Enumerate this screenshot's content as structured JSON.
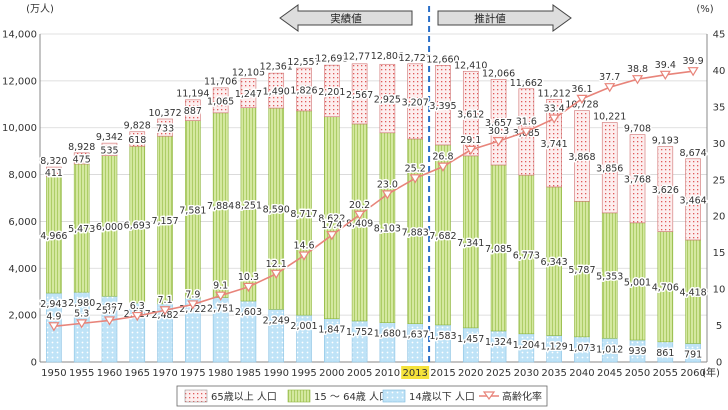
{
  "chart_data": {
    "type": "bar",
    "subtype": "stacked-bar-with-line",
    "y_left_unit": "(万人)",
    "y_right_unit": "(%)",
    "x_suffix": "(年)",
    "ylim_left": [
      0,
      14000
    ],
    "yticks_left": [
      0,
      2000,
      4000,
      6000,
      8000,
      10000,
      12000,
      14000
    ],
    "ylim_right": [
      0,
      45
    ],
    "yticks_right": [
      0,
      5,
      10,
      15,
      20,
      25,
      30,
      35,
      40,
      45
    ],
    "categories": [
      "1950",
      "1955",
      "1960",
      "1965",
      "1970",
      "1975",
      "1980",
      "1985",
      "1990",
      "1995",
      "2000",
      "2005",
      "2010",
      "2013",
      "2015",
      "2020",
      "2025",
      "2030",
      "2035",
      "2040",
      "2045",
      "2050",
      "2055",
      "2060"
    ],
    "highlight_category": "2013",
    "series": [
      {
        "name": "14歳以下 人口",
        "values": [
          2943,
          2980,
          2807,
          2517,
          2482,
          2722,
          2751,
          2603,
          2249,
          2001,
          1847,
          1752,
          1680,
          1637,
          1583,
          1457,
          1324,
          1204,
          1129,
          1073,
          1012,
          939,
          861,
          791
        ]
      },
      {
        "name": "15～64歳 人口",
        "values": [
          4966,
          5473,
          6000,
          6693,
          7157,
          7581,
          7884,
          8251,
          8590,
          8717,
          8622,
          8409,
          8103,
          7883,
          7682,
          7341,
          7085,
          6773,
          6343,
          5787,
          5353,
          5001,
          4706,
          4418
        ]
      },
      {
        "name": "65歳以上 人口",
        "values": [
          411,
          475,
          535,
          618,
          733,
          887,
          1065,
          1247,
          1490,
          1826,
          2201,
          2567,
          2925,
          3207,
          3395,
          3612,
          3657,
          3685,
          3741,
          3868,
          3856,
          3768,
          3626,
          3464
        ]
      }
    ],
    "totals": [
      8320,
      8928,
      9342,
      9828,
      10372,
      11194,
      11706,
      12105,
      12361,
      12557,
      12693,
      12777,
      12806,
      12727,
      12660,
      12410,
      12066,
      11662,
      11212,
      10728,
      10221,
      9708,
      9193,
      8674
    ],
    "line": {
      "name": "高齢化率",
      "values": [
        4.9,
        5.3,
        5.7,
        6.3,
        7.1,
        7.9,
        9.1,
        10.3,
        12.1,
        14.6,
        17.4,
        20.2,
        23.0,
        25.2,
        26.8,
        29.1,
        30.3,
        31.6,
        33.4,
        36.1,
        37.7,
        38.8,
        39.4,
        39.9
      ]
    },
    "segment_labels": {
      "under15": [
        "2,943",
        "2,980",
        "2,807",
        "2,517",
        "2,482",
        "2,722",
        "2,751",
        "2,603",
        "2,249",
        "2,001",
        "1,847",
        "1,752",
        "1,680",
        "1,637",
        "1,583",
        "1,457",
        "1,324",
        "1,204",
        "1,129",
        "1,073",
        "1,012",
        "939",
        "861",
        "791"
      ],
      "working": [
        "4,966",
        "5,473",
        "6,000",
        "6,693",
        "7,157",
        "7,581",
        "7,884",
        "8,251",
        "8,590",
        "8,717",
        "8,622",
        "8,409",
        "8,103",
        "7,883",
        "7,682",
        "7,341",
        "7,085",
        "6,773",
        "6,343",
        "5,787",
        "5,353",
        "5,001",
        "4,706",
        "4,418"
      ],
      "over65": [
        "411",
        "475",
        "535",
        "618",
        "733",
        "887",
        "1,065",
        "1,247",
        "1,490",
        "1,826",
        "2,201",
        "2,567",
        "2,925",
        "3,207",
        "3,395",
        "3,612",
        "3,657",
        "3,685",
        "3,741",
        "3,868",
        "3,856",
        "3,768",
        "3,626",
        "3,464"
      ],
      "totals": [
        "8,320",
        "8,928",
        "9,342",
        "9,828",
        "10,372",
        "11,194",
        "11,706",
        "12,105",
        "12,361",
        "12,557",
        "12,693",
        "12,777",
        "12,806",
        "12,727",
        "12,660",
        "12,410",
        "12,066",
        "11,662",
        "11,212",
        "10,728",
        "10,221",
        "9,708",
        "9,193",
        "8,674"
      ],
      "line": [
        "4.9",
        "5.3",
        "5.7",
        "6.3",
        "7.1",
        "7.9",
        "9.1",
        "10.3",
        "12.1",
        "14.6",
        "17.4",
        "20.2",
        "23.0",
        "25.2",
        "26.8",
        "29.1",
        "30.3",
        "31.6",
        "33.4",
        "36.1",
        "37.7",
        "38.8",
        "39.4",
        "39.9"
      ]
    },
    "period_arrows": {
      "actual": "実績値",
      "projected": "推計値"
    },
    "legend_placement": "bottom",
    "grid": true
  },
  "legend": {
    "over65": "65歳以上 人口",
    "working": "15 ～ 64歳 人口",
    "under15": "14歳以下 人口",
    "line": "高齢化率"
  },
  "colors": {
    "under15": "#bfe3f7",
    "under15_dot": "#ffffff",
    "working": "#c8e08c",
    "working_line": "#8fb640",
    "over65": "#fbe3e3",
    "over65_dot": "#e05a5a",
    "line": "#e8847a",
    "highlight": "#f5e23a",
    "divider": "#2a6fc8"
  }
}
